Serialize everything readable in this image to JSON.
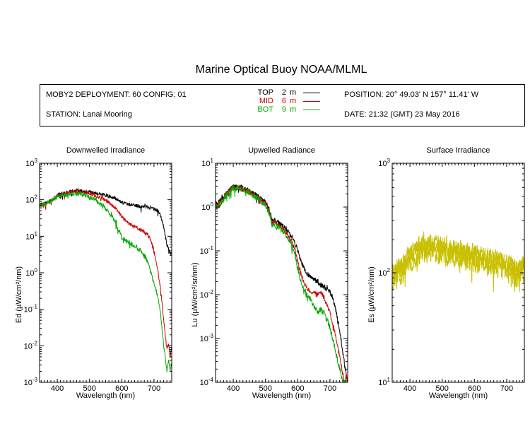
{
  "title": "Marine Optical Buoy NOAA/MLML",
  "info": {
    "deployment": "MOBY2 DEPLOYMENT: 60 CONFIG: 01",
    "station": "STATION: Lanai Mooring",
    "position": "POSITION: 20° 49.03' N   157° 11.41' W",
    "date": "DATE: 21:32 (GMT) 23 May 2016",
    "legend": [
      {
        "label": "TOP",
        "depth": "2",
        "unit": "m",
        "color": "#000000"
      },
      {
        "label": "MID",
        "depth": "6",
        "unit": "m",
        "color": "#cc0000"
      },
      {
        "label": "BOT",
        "depth": "9",
        "unit": "m",
        "color": "#00aa00"
      }
    ]
  },
  "chart_data": [
    {
      "type": "line",
      "title": "Downwelled Irradiance",
      "xlabel": "Wavelength (nm)",
      "ylabel": "Ed  (µW/cm²/nm)",
      "yscale": "log",
      "xlim": [
        345,
        755
      ],
      "ylim": [
        0.001,
        1000
      ],
      "xticks": [
        400,
        500,
        600,
        700
      ],
      "yticks": [
        {
          "v": 0.001,
          "b": "10",
          "e": "-3"
        },
        {
          "v": 0.01,
          "b": "10",
          "e": "-2"
        },
        {
          "v": 0.1,
          "b": "10",
          "e": "-1"
        },
        {
          "v": 1,
          "b": "10",
          "e": "0"
        },
        {
          "v": 10,
          "b": "10",
          "e": "1"
        },
        {
          "v": 100,
          "b": "10",
          "e": "2"
        },
        {
          "v": 1000,
          "b": "10",
          "e": "3"
        }
      ],
      "series": [
        {
          "name": "TOP",
          "color": "#000000",
          "noise": 0.05,
          "x": [
            350,
            360,
            370,
            380,
            390,
            400,
            410,
            420,
            440,
            460,
            480,
            500,
            520,
            540,
            560,
            580,
            600,
            620,
            640,
            660,
            680,
            700,
            710,
            720,
            730,
            740,
            750,
            755
          ],
          "y": [
            75,
            80,
            85,
            95,
            110,
            135,
            140,
            150,
            165,
            175,
            170,
            160,
            150,
            140,
            125,
            110,
            85,
            75,
            70,
            67,
            63,
            57,
            50,
            38,
            18,
            6,
            3.3,
            3.3
          ]
        },
        {
          "name": "MID",
          "color": "#cc0000",
          "noise": 0.05,
          "x": [
            350,
            360,
            370,
            380,
            390,
            400,
            410,
            420,
            440,
            460,
            480,
            500,
            520,
            540,
            560,
            580,
            600,
            620,
            640,
            660,
            680,
            690,
            700,
            710,
            720,
            730,
            735,
            740,
            745,
            750,
            755
          ],
          "y": [
            72,
            78,
            85,
            92,
            108,
            130,
            138,
            145,
            160,
            165,
            165,
            150,
            130,
            110,
            85,
            60,
            35,
            22,
            18,
            15,
            11,
            8,
            4,
            1.5,
            0.4,
            0.05,
            0.02,
            0.008,
            0.012,
            0.005,
            0.01
          ]
        },
        {
          "name": "BOT",
          "color": "#00aa00",
          "noise": 0.06,
          "x": [
            350,
            360,
            370,
            380,
            390,
            400,
            410,
            420,
            440,
            460,
            480,
            500,
            520,
            540,
            560,
            580,
            590,
            600,
            620,
            640,
            660,
            680,
            690,
            700,
            710,
            720,
            730,
            735,
            740,
            745,
            750,
            755
          ],
          "y": [
            70,
            75,
            82,
            90,
            102,
            125,
            130,
            135,
            145,
            145,
            140,
            120,
            95,
            70,
            45,
            25,
            15,
            9,
            7,
            5.5,
            4,
            2,
            1,
            0.5,
            0.25,
            0.08,
            0.01,
            0.005,
            0.002,
            0.004,
            0.002,
            0.003
          ]
        }
      ]
    },
    {
      "type": "line",
      "title": "Upwelled Radiance",
      "xlabel": "Wavelength (nm)",
      "ylabel": "Lu  (µW/cm²/sr/nm)",
      "yscale": "log",
      "xlim": [
        345,
        755
      ],
      "ylim": [
        0.0001,
        10
      ],
      "xticks": [
        400,
        500,
        600,
        700
      ],
      "yticks": [
        {
          "v": 0.0001,
          "b": "10",
          "e": "-4"
        },
        {
          "v": 0.001,
          "b": "10",
          "e": "-3"
        },
        {
          "v": 0.01,
          "b": "10",
          "e": "-2"
        },
        {
          "v": 0.1,
          "b": "10",
          "e": "-1"
        },
        {
          "v": 1,
          "b": "10",
          "e": "0"
        },
        {
          "v": 10,
          "b": "10",
          "e": "1"
        }
      ],
      "series": [
        {
          "name": "TOP",
          "color": "#000000",
          "noise": 0.06,
          "x": [
            350,
            360,
            370,
            380,
            390,
            400,
            410,
            420,
            440,
            460,
            480,
            500,
            510,
            520,
            540,
            560,
            580,
            590,
            600,
            610,
            620,
            630,
            640,
            660,
            680,
            700,
            710,
            720,
            730,
            740,
            750,
            755
          ],
          "y": [
            1.2,
            1.4,
            1.7,
            2.1,
            2.6,
            2.9,
            2.8,
            2.9,
            2.5,
            2.1,
            1.7,
            1.3,
            0.95,
            0.5,
            0.45,
            0.35,
            0.22,
            0.16,
            0.1,
            0.06,
            0.04,
            0.03,
            0.026,
            0.02,
            0.015,
            0.012,
            0.008,
            0.004,
            0.0015,
            0.0005,
            0.00015,
            0.0001
          ]
        },
        {
          "name": "MID",
          "color": "#cc0000",
          "noise": 0.06,
          "x": [
            350,
            360,
            370,
            380,
            390,
            400,
            410,
            420,
            440,
            460,
            480,
            500,
            510,
            520,
            540,
            560,
            580,
            590,
            600,
            610,
            620,
            630,
            640,
            660,
            670,
            680,
            700,
            710,
            720,
            730,
            740,
            745,
            750,
            755
          ],
          "y": [
            1.1,
            1.3,
            1.6,
            2,
            2.5,
            2.8,
            2.7,
            2.7,
            2.4,
            2,
            1.6,
            1.2,
            0.9,
            0.45,
            0.4,
            0.3,
            0.17,
            0.12,
            0.06,
            0.03,
            0.018,
            0.014,
            0.012,
            0.01,
            0.012,
            0.009,
            0.004,
            0.002,
            0.0009,
            0.0004,
            0.00015,
            0.0001,
            0.00015,
            0.0001
          ]
        },
        {
          "name": "BOT",
          "color": "#00aa00",
          "noise": 0.07,
          "x": [
            350,
            360,
            370,
            380,
            390,
            400,
            410,
            420,
            440,
            460,
            480,
            500,
            510,
            520,
            540,
            560,
            580,
            590,
            600,
            610,
            620,
            630,
            640,
            660,
            670,
            680,
            700,
            710,
            720,
            730,
            740,
            745,
            750,
            755
          ],
          "y": [
            1,
            1.2,
            1.5,
            1.9,
            2.4,
            2.7,
            2.6,
            2.6,
            2.3,
            1.9,
            1.5,
            1.1,
            0.8,
            0.4,
            0.35,
            0.26,
            0.14,
            0.09,
            0.04,
            0.02,
            0.013,
            0.01,
            0.008,
            0.004,
            0.0045,
            0.004,
            0.0018,
            0.0009,
            0.0004,
            0.0002,
            0.0001,
            0.0001,
            0.0001,
            0.0001
          ]
        }
      ]
    },
    {
      "type": "line",
      "title": "Surface Irradiance",
      "xlabel": "Wavelength (nm)",
      "ylabel": "Es  (µW/cm²/nm)",
      "yscale": "log",
      "xlim": [
        345,
        755
      ],
      "ylim": [
        10,
        1000
      ],
      "xticks": [
        400,
        500,
        600,
        700
      ],
      "yticks": [
        {
          "v": 10,
          "b": "10",
          "e": "1"
        },
        {
          "v": 100,
          "b": "10",
          "e": "2"
        },
        {
          "v": 1000,
          "b": "10",
          "e": "3"
        }
      ],
      "series": [
        {
          "color": "#c8c000",
          "noise": 0.08,
          "x": [
            350,
            360,
            370,
            380,
            390,
            400,
            410,
            420,
            440,
            460,
            480,
            500,
            520,
            540,
            560,
            580,
            600,
            620,
            640,
            660,
            680,
            700,
            710,
            720,
            730,
            740,
            750,
            755
          ],
          "y": [
            100,
            110,
            118,
            125,
            140,
            155,
            160,
            170,
            185,
            190,
            185,
            180,
            175,
            170,
            165,
            160,
            155,
            150,
            145,
            140,
            135,
            125,
            120,
            115,
            110,
            112,
            118,
            120
          ]
        },
        {
          "color": "#c8c000",
          "noise": 0.08,
          "x": [
            350,
            360,
            370,
            380,
            390,
            400,
            410,
            420,
            440,
            460,
            480,
            500,
            520,
            540,
            560,
            580,
            600,
            620,
            640,
            660,
            680,
            700,
            710,
            720,
            730,
            740,
            750,
            755
          ],
          "y": [
            95,
            102,
            110,
            118,
            132,
            148,
            152,
            162,
            175,
            180,
            175,
            170,
            165,
            160,
            155,
            150,
            145,
            140,
            135,
            130,
            125,
            115,
            110,
            106,
            100,
            104,
            110,
            112
          ]
        },
        {
          "color": "#c8c000",
          "noise": 0.1,
          "x": [
            350,
            360,
            370,
            380,
            390,
            400,
            410,
            420,
            440,
            460,
            480,
            500,
            520,
            540,
            560,
            580,
            600,
            620,
            640,
            660,
            680,
            700,
            710,
            720,
            730,
            740,
            750,
            755
          ],
          "y": [
            85,
            90,
            95,
            100,
            112,
            125,
            130,
            138,
            150,
            155,
            150,
            145,
            140,
            138,
            135,
            130,
            126,
            122,
            118,
            114,
            110,
            102,
            98,
            95,
            88,
            92,
            98,
            100
          ]
        }
      ]
    }
  ]
}
